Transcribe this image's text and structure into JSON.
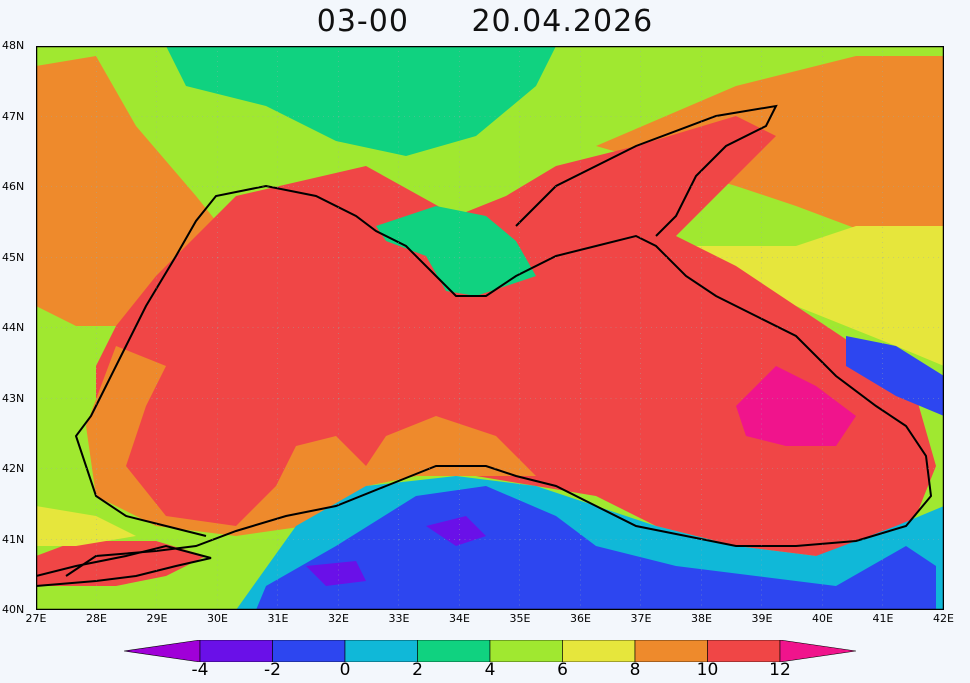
{
  "title": {
    "time": "03-00",
    "date": "20.04.2026"
  },
  "lat_labels": [
    "48N",
    "47N",
    "46N",
    "45N",
    "44N",
    "43N",
    "42N",
    "41N",
    "40N"
  ],
  "lon_labels": [
    "27E",
    "28E",
    "29E",
    "30E",
    "31E",
    "32E",
    "33E",
    "34E",
    "35E",
    "36E",
    "37E",
    "38E",
    "39E",
    "40E",
    "41E",
    "42E"
  ],
  "colorbar": {
    "labels": [
      "-4",
      "-2",
      "0",
      "2",
      "4",
      "6",
      "8",
      "10",
      "12"
    ],
    "colors": [
      "#a000d8",
      "#6a10e8",
      "#2d46f0",
      "#10b8d8",
      "#10d280",
      "#a0e830",
      "#e6e63c",
      "#ee8a2c",
      "#f04646",
      "#f0148c"
    ]
  }
}
